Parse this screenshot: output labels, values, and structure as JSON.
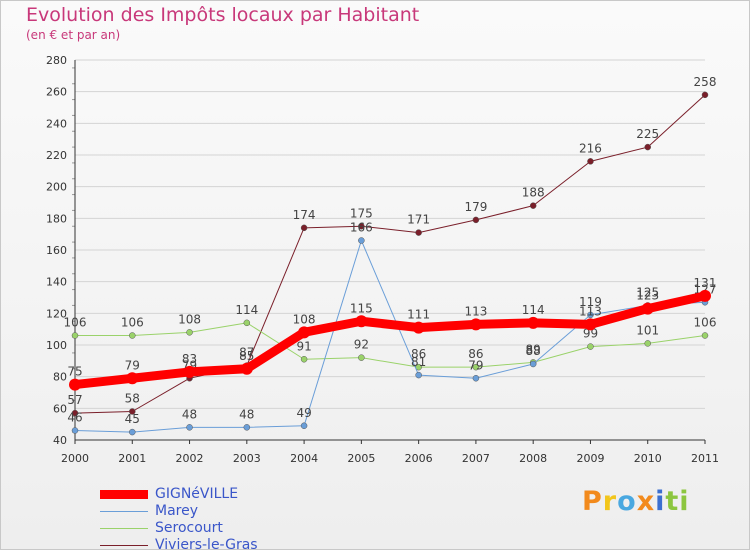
{
  "header": {
    "title": "Evolution des Impôts locaux par Habitant",
    "subtitle": "(en € et par an)"
  },
  "logo": {
    "text": "Proxiti",
    "letters": [
      "P",
      "r",
      "o",
      "x",
      "i",
      "t",
      "i"
    ],
    "colors": [
      "#f28a1c",
      "#f2c61c",
      "#4aa8e0",
      "#f28a1c",
      "#3b6fd0",
      "#8cc63f",
      "#8cc63f"
    ]
  },
  "chart_data": {
    "type": "line",
    "title": "Evolution des Impôts locaux par Habitant",
    "subtitle": "(en € et par an)",
    "xlabel": "",
    "ylabel": "",
    "categories": [
      "2000",
      "2001",
      "2002",
      "2003",
      "2004",
      "2005",
      "2006",
      "2007",
      "2008",
      "2009",
      "2010",
      "2011"
    ],
    "ylim": [
      40,
      280
    ],
    "yticks": [
      40,
      60,
      80,
      100,
      120,
      140,
      160,
      180,
      200,
      220,
      240,
      260,
      280
    ],
    "grid": true,
    "legend_position": "bottom-left",
    "series": [
      {
        "name": "Viviers-le-Gras",
        "color": "#7a1f2a",
        "width": 1,
        "values": [
          57,
          58,
          79,
          87,
          174,
          175,
          171,
          179,
          188,
          216,
          225,
          258
        ]
      },
      {
        "name": "Serocourt",
        "color": "#9ad26a",
        "width": 1,
        "values": [
          106,
          106,
          108,
          114,
          91,
          92,
          86,
          86,
          89,
          99,
          101,
          106
        ]
      },
      {
        "name": "Marey",
        "color": "#6a9ed8",
        "width": 1,
        "values": [
          46,
          45,
          48,
          48,
          49,
          166,
          81,
          79,
          88,
          119,
          125,
          127
        ]
      },
      {
        "name": "GIGNéVILLE",
        "color": "#ff0000",
        "width": 9,
        "values": [
          75,
          79,
          83,
          85,
          108,
          115,
          111,
          113,
          114,
          113,
          123,
          131
        ]
      }
    ]
  },
  "legend": {
    "items": [
      {
        "label": "GIGNéVILLE",
        "color": "#ff0000",
        "width": 9
      },
      {
        "label": "Marey",
        "color": "#6a9ed8",
        "width": 1
      },
      {
        "label": "Serocourt",
        "color": "#9ad26a",
        "width": 1
      },
      {
        "label": "Viviers-le-Gras",
        "color": "#7a1f2a",
        "width": 1
      }
    ]
  }
}
